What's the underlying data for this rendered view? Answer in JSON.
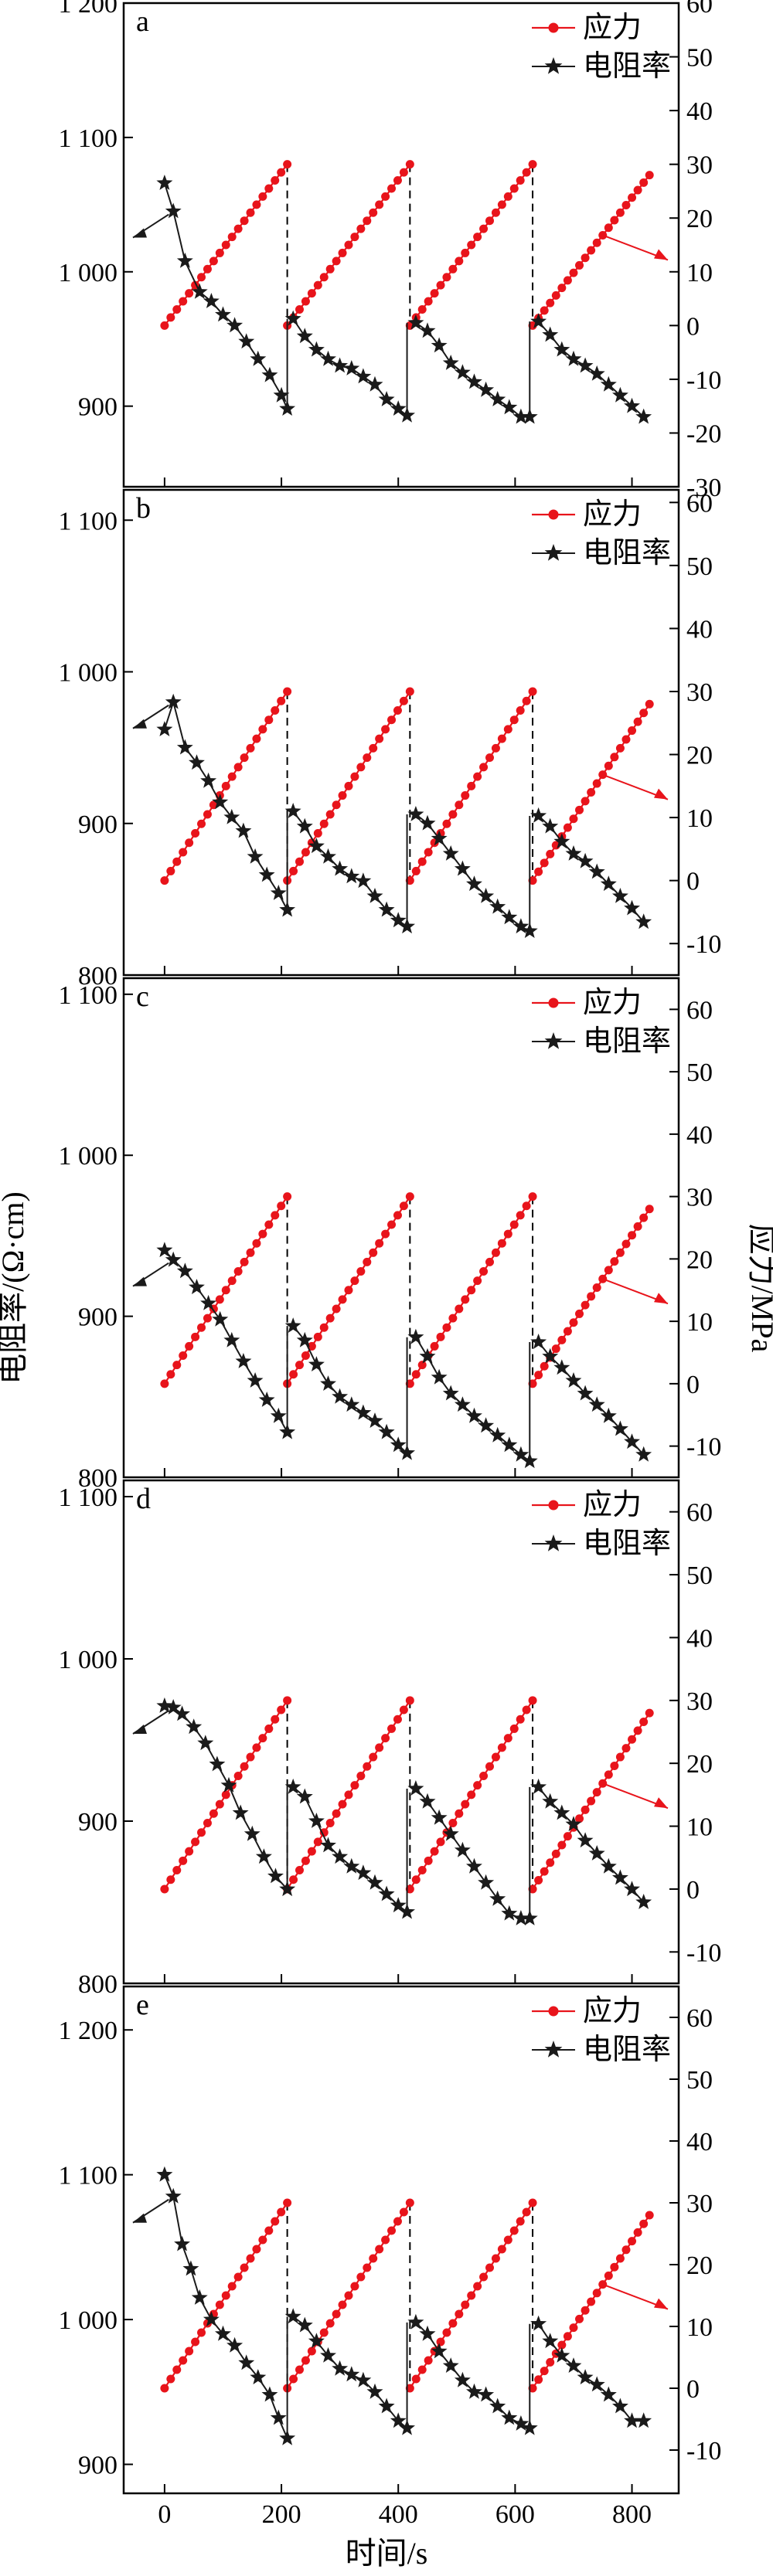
{
  "figure": {
    "y_left_label": "电阻率/(Ω·cm)",
    "y_right_label": "应力/MPa",
    "x_label": "时间/s"
  },
  "legend": {
    "stress": "应力",
    "resistivity": "电阻率"
  },
  "colors": {
    "stress": "#e8141b",
    "resistivity": "#1a1a1a",
    "axis": "#000000"
  },
  "chart_data": [
    {
      "type": "line",
      "panel_label": "a",
      "xlim": [
        -70,
        880
      ],
      "x_ticks": [
        0,
        200,
        400,
        600,
        800
      ],
      "x_tick_labels": [
        "",
        "",
        "",
        "",
        ""
      ],
      "left_ylim": [
        840,
        1200
      ],
      "left_ticks": [
        900,
        1000,
        1100,
        1200
      ],
      "left_tick_labels": [
        "900",
        "1 000",
        "1 100",
        "1 200"
      ],
      "right_ylim": [
        -30,
        60
      ],
      "right_ticks": [
        -30,
        -20,
        -10,
        0,
        10,
        20,
        30,
        40,
        50,
        60
      ],
      "right_tick_labels": [
        "-30",
        "-20",
        "-10",
        "0",
        "10",
        "20",
        "30",
        "40",
        "50",
        "60"
      ],
      "series": [
        {
          "name": "应力",
          "axis": "right",
          "x": [
            0,
            210,
            210,
            420,
            420,
            630,
            630,
            830
          ],
          "y": [
            0,
            30,
            0,
            30,
            0,
            30,
            0,
            28
          ]
        },
        {
          "name": "电阻率",
          "axis": "left",
          "x": [
            0,
            15,
            35,
            60,
            80,
            100,
            120,
            140,
            160,
            180,
            200,
            210,
            220,
            240,
            260,
            280,
            300,
            320,
            340,
            360,
            380,
            400,
            415,
            430,
            450,
            470,
            490,
            510,
            530,
            550,
            570,
            590,
            610,
            625,
            640,
            660,
            680,
            700,
            720,
            740,
            760,
            780,
            800,
            820
          ],
          "y": [
            1066,
            1045,
            1008,
            985,
            978,
            968,
            960,
            948,
            935,
            923,
            908,
            898,
            965,
            952,
            942,
            935,
            930,
            928,
            922,
            916,
            905,
            898,
            893,
            962,
            956,
            945,
            932,
            925,
            918,
            912,
            905,
            899,
            892,
            892,
            963,
            953,
            942,
            935,
            930,
            924,
            916,
            908,
            900,
            892
          ]
        }
      ]
    },
    {
      "type": "line",
      "panel_label": "b",
      "xlim": [
        -70,
        880
      ],
      "x_ticks": [
        0,
        200,
        400,
        600,
        800
      ],
      "x_tick_labels": [
        "",
        "",
        "",
        "",
        ""
      ],
      "left_ylim": [
        800,
        1120
      ],
      "left_ticks": [
        800,
        900,
        1000,
        1100
      ],
      "left_tick_labels": [
        "800",
        "900",
        "1 000",
        "1 100"
      ],
      "right_ylim": [
        -15,
        62
      ],
      "right_ticks": [
        -10,
        0,
        10,
        20,
        30,
        40,
        50,
        60
      ],
      "right_tick_labels": [
        "-10",
        "0",
        "10",
        "20",
        "30",
        "40",
        "50",
        "60"
      ],
      "series": [
        {
          "name": "应力",
          "axis": "right",
          "x": [
            0,
            210,
            210,
            420,
            420,
            630,
            630,
            830
          ],
          "y": [
            0,
            30,
            0,
            30,
            0,
            30,
            0,
            28
          ]
        },
        {
          "name": "电阻率",
          "axis": "left",
          "x": [
            0,
            15,
            35,
            55,
            75,
            95,
            115,
            135,
            155,
            175,
            195,
            210,
            220,
            240,
            260,
            280,
            300,
            320,
            340,
            360,
            380,
            400,
            415,
            430,
            450,
            470,
            490,
            510,
            530,
            550,
            570,
            590,
            610,
            625,
            640,
            660,
            680,
            700,
            720,
            740,
            760,
            780,
            800,
            820
          ],
          "y": [
            962,
            980,
            950,
            940,
            928,
            914,
            904,
            895,
            878,
            866,
            854,
            843,
            908,
            898,
            885,
            878,
            870,
            865,
            862,
            852,
            843,
            836,
            832,
            906,
            900,
            890,
            880,
            870,
            860,
            852,
            845,
            838,
            832,
            829,
            905,
            898,
            888,
            880,
            875,
            868,
            860,
            852,
            844,
            835
          ]
        }
      ]
    },
    {
      "type": "line",
      "panel_label": "c",
      "xlim": [
        -70,
        880
      ],
      "x_ticks": [
        0,
        200,
        400,
        600,
        800
      ],
      "x_tick_labels": [
        "",
        "",
        "",
        "",
        ""
      ],
      "left_ylim": [
        800,
        1110
      ],
      "left_ticks": [
        800,
        900,
        1000,
        1100
      ],
      "left_tick_labels": [
        "800",
        "900",
        "1 000",
        "1 100"
      ],
      "right_ylim": [
        -15,
        65
      ],
      "right_ticks": [
        -10,
        0,
        10,
        20,
        30,
        40,
        50,
        60
      ],
      "right_tick_labels": [
        "-10",
        "0",
        "10",
        "20",
        "30",
        "40",
        "50",
        "60"
      ],
      "series": [
        {
          "name": "应力",
          "axis": "right",
          "x": [
            0,
            210,
            210,
            420,
            420,
            630,
            630,
            830
          ],
          "y": [
            0,
            30,
            0,
            30,
            0,
            30,
            0,
            28
          ]
        },
        {
          "name": "电阻率",
          "axis": "left",
          "x": [
            0,
            15,
            35,
            55,
            75,
            95,
            115,
            135,
            155,
            175,
            195,
            210,
            220,
            240,
            260,
            280,
            300,
            320,
            340,
            360,
            380,
            400,
            415,
            430,
            450,
            470,
            490,
            510,
            530,
            550,
            570,
            590,
            610,
            625,
            640,
            660,
            680,
            700,
            720,
            740,
            760,
            780,
            800,
            820
          ],
          "y": [
            941,
            935,
            928,
            918,
            908,
            898,
            885,
            872,
            860,
            848,
            838,
            828,
            894,
            885,
            870,
            858,
            850,
            845,
            840,
            835,
            828,
            820,
            815,
            887,
            875,
            862,
            852,
            845,
            838,
            832,
            826,
            820,
            814,
            810,
            884,
            875,
            868,
            860,
            852,
            845,
            838,
            830,
            822,
            814
          ]
        }
      ]
    },
    {
      "type": "line",
      "panel_label": "d",
      "xlim": [
        -70,
        880
      ],
      "x_ticks": [
        0,
        200,
        400,
        600,
        800
      ],
      "x_tick_labels": [
        "",
        "",
        "",
        "",
        ""
      ],
      "left_ylim": [
        800,
        1110
      ],
      "left_ticks": [
        800,
        900,
        1000,
        1100
      ],
      "left_tick_labels": [
        "800",
        "900",
        "1 000",
        "1 100"
      ],
      "right_ylim": [
        -15,
        65
      ],
      "right_ticks": [
        -10,
        0,
        10,
        20,
        30,
        40,
        50,
        60
      ],
      "right_tick_labels": [
        "-10",
        "0",
        "10",
        "20",
        "30",
        "40",
        "50",
        "60"
      ],
      "series": [
        {
          "name": "应力",
          "axis": "right",
          "x": [
            0,
            210,
            210,
            420,
            420,
            630,
            630,
            830
          ],
          "y": [
            0,
            30,
            0,
            30,
            0,
            30,
            0,
            28
          ]
        },
        {
          "name": "电阻率",
          "axis": "left",
          "x": [
            0,
            15,
            30,
            50,
            70,
            90,
            110,
            130,
            150,
            170,
            190,
            210,
            220,
            240,
            260,
            280,
            300,
            320,
            340,
            360,
            380,
            400,
            415,
            430,
            450,
            470,
            490,
            510,
            530,
            550,
            570,
            590,
            610,
            625,
            640,
            660,
            680,
            700,
            720,
            740,
            760,
            780,
            800,
            820
          ],
          "y": [
            971,
            970,
            966,
            958,
            948,
            935,
            922,
            905,
            892,
            878,
            866,
            858,
            921,
            915,
            900,
            885,
            878,
            872,
            868,
            862,
            855,
            848,
            844,
            920,
            912,
            902,
            892,
            882,
            872,
            862,
            852,
            843,
            840,
            840,
            921,
            912,
            905,
            898,
            888,
            880,
            872,
            865,
            858,
            850
          ]
        }
      ]
    },
    {
      "type": "line",
      "panel_label": "e",
      "xlim": [
        -70,
        880
      ],
      "x_ticks": [
        0,
        200,
        400,
        600,
        800
      ],
      "x_tick_labels": [
        "0",
        "200",
        "400",
        "600",
        "800"
      ],
      "left_ylim": [
        880,
        1230
      ],
      "left_ticks": [
        900,
        1000,
        1100,
        1200
      ],
      "left_tick_labels": [
        "900",
        "1 000",
        "1 100",
        "1 200"
      ],
      "right_ylim": [
        -17,
        65
      ],
      "right_ticks": [
        -10,
        0,
        10,
        20,
        30,
        40,
        50,
        60
      ],
      "right_tick_labels": [
        "-10",
        "0",
        "10",
        "20",
        "30",
        "40",
        "50",
        "60"
      ],
      "series": [
        {
          "name": "应力",
          "axis": "right",
          "x": [
            0,
            210,
            210,
            420,
            420,
            630,
            630,
            830
          ],
          "y": [
            0,
            30,
            0,
            30,
            0,
            30,
            0,
            28
          ]
        },
        {
          "name": "电阻率",
          "axis": "left",
          "x": [
            0,
            15,
            30,
            45,
            60,
            80,
            100,
            120,
            140,
            160,
            180,
            195,
            210,
            220,
            240,
            260,
            280,
            300,
            320,
            340,
            360,
            380,
            400,
            415,
            430,
            450,
            470,
            490,
            510,
            530,
            550,
            570,
            590,
            610,
            625,
            640,
            660,
            680,
            700,
            720,
            740,
            760,
            780,
            800,
            820
          ],
          "y": [
            1100,
            1085,
            1052,
            1035,
            1015,
            1000,
            990,
            982,
            970,
            960,
            948,
            932,
            918,
            1002,
            996,
            985,
            975,
            966,
            962,
            958,
            950,
            940,
            930,
            925,
            998,
            990,
            978,
            968,
            958,
            950,
            948,
            940,
            932,
            928,
            925,
            997,
            985,
            975,
            968,
            960,
            955,
            948,
            940,
            930,
            930
          ]
        }
      ]
    }
  ]
}
